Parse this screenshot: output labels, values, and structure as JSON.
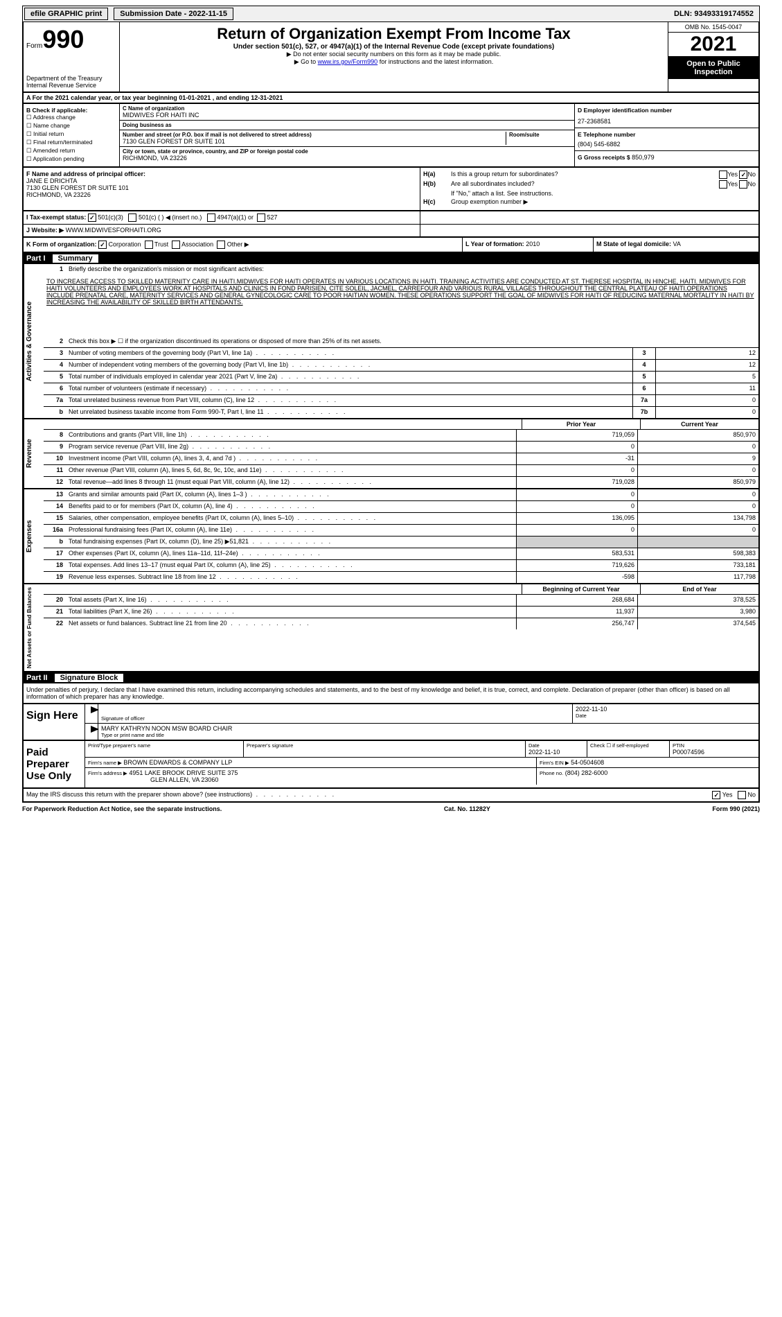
{
  "top": {
    "efile": "efile GRAPHIC print",
    "submission": "Submission Date - 2022-11-15",
    "dln": "DLN: 93493319174552"
  },
  "header": {
    "form_prefix": "Form",
    "form_num": "990",
    "dept": "Department of the Treasury Internal Revenue Service",
    "title": "Return of Organization Exempt From Income Tax",
    "sub": "Under section 501(c), 527, or 4947(a)(1) of the Internal Revenue Code (except private foundations)",
    "line1": "▶ Do not enter social security numbers on this form as it may be made public.",
    "line2_pre": "▶ Go to ",
    "line2_link": "www.irs.gov/Form990",
    "line2_post": " for instructions and the latest information.",
    "omb": "OMB No. 1545-0047",
    "year": "2021",
    "open": "Open to Public Inspection"
  },
  "a": "A For the 2021 calendar year, or tax year beginning 01-01-2021   , and ending 12-31-2021",
  "b": {
    "label": "B Check if applicable:",
    "opts": [
      "Address change",
      "Name change",
      "Initial return",
      "Final return/terminated",
      "Amended return",
      "Application pending"
    ]
  },
  "c": {
    "name_label": "C Name of organization",
    "name": "MIDWIVES FOR HAITI INC",
    "dba_label": "Doing business as",
    "dba": "",
    "street_label": "Number and street (or P.O. box if mail is not delivered to street address)",
    "street": "7130 GLEN FOREST DR SUITE 101",
    "room_label": "Room/suite",
    "room": "",
    "city_label": "City or town, state or province, country, and ZIP or foreign postal code",
    "city": "RICHMOND, VA  23226"
  },
  "d": {
    "label": "D Employer identification number",
    "val": "27-2368581"
  },
  "e": {
    "label": "E Telephone number",
    "val": "(804) 545-6882"
  },
  "g": {
    "label": "G Gross receipts $",
    "val": "850,979"
  },
  "f": {
    "label": "F  Name and address of principal officer:",
    "line1": "JANE E DRICHTA",
    "line2": "7130 GLEN FOREST DR SUITE 101",
    "line3": "RICHMOND, VA  23226"
  },
  "h": {
    "a_label": "H(a)",
    "a_text": "Is this a group return for subordinates?",
    "a_yes": "Yes",
    "a_no": "No",
    "b_label": "H(b)",
    "b_text": "Are all subordinates included?",
    "b_note": "If \"No,\" attach a list. See instructions.",
    "c_label": "H(c)",
    "c_text": "Group exemption number ▶"
  },
  "i": {
    "label": "I   Tax-exempt status:",
    "o1": "501(c)(3)",
    "o2": "501(c) (  ) ◀ (insert no.)",
    "o3": "4947(a)(1) or",
    "o4": "527"
  },
  "j": {
    "label": "J   Website: ▶",
    "val": "WWW.MIDWIVESFORHAITI.ORG"
  },
  "k": {
    "label": "K Form of organization:",
    "o1": "Corporation",
    "o2": "Trust",
    "o3": "Association",
    "o4": "Other ▶"
  },
  "l": {
    "label": "L Year of formation:",
    "val": "2010"
  },
  "m": {
    "label": "M State of legal domicile:",
    "val": "VA"
  },
  "part1": {
    "hdr": "Part I",
    "title": "Summary",
    "sections": {
      "gov": "Activities & Governance",
      "rev": "Revenue",
      "exp": "Expenses",
      "net": "Net Assets or Fund Balances"
    },
    "line1_label": "1",
    "line1_desc": "Briefly describe the organization's mission or most significant activities:",
    "mission": "TO INCREASE ACCESS TO SKILLED MATERNITY CARE IN HAITI.MIDWIVES FOR HAITI OPERATES IN VARIOUS LOCATIONS IN HAITI. TRAINING ACTIVITIES ARE CONDUCTED AT ST. THERESE HOSPITAL IN HINCHE, HAITI. MIDWIVES FOR HAITI VOLUNTEERS AND EMPLOYEES WORK AT HOSPITALS AND CLINICS IN FOND PARISIEN, CITE SOLEIL, JACMEL, CARREFOUR AND VARIOUS RURAL VILLAGES THROUGHOUT THE CENTRAL PLATEAU OF HAITI.OPERATIONS INCLUDE PRENATAL CARE, MATERNITY SERVICES AND GENERAL GYNECOLOGIC CARE TO POOR HAITIAN WOMEN. THESE OPERATIONS SUPPORT THE GOAL OF MIDWIVES FOR HAITI OF REDUCING MATERNAL MORTALITY IN HAITI BY INCREASING THE AVAILABILITY OF SKILLED BIRTH ATTENDANTS.",
    "line2": "Check this box ▶ ☐ if the organization discontinued its operations or disposed of more than 25% of its net assets.",
    "rows_single": [
      {
        "n": "3",
        "d": "Number of voting members of the governing body (Part VI, line 1a)",
        "box": "3",
        "v": "12"
      },
      {
        "n": "4",
        "d": "Number of independent voting members of the governing body (Part VI, line 1b)",
        "box": "4",
        "v": "12"
      },
      {
        "n": "5",
        "d": "Total number of individuals employed in calendar year 2021 (Part V, line 2a)",
        "box": "5",
        "v": "5"
      },
      {
        "n": "6",
        "d": "Total number of volunteers (estimate if necessary)",
        "box": "6",
        "v": "11"
      },
      {
        "n": "7a",
        "d": "Total unrelated business revenue from Part VIII, column (C), line 12",
        "box": "7a",
        "v": "0"
      },
      {
        "n": "b",
        "d": "Net unrelated business taxable income from Form 990-T, Part I, line 11",
        "box": "7b",
        "v": "0"
      }
    ],
    "col_hdr": {
      "prior": "Prior Year",
      "current": "Current Year"
    },
    "rows_rev": [
      {
        "n": "8",
        "d": "Contributions and grants (Part VIII, line 1h)",
        "p": "719,059",
        "c": "850,970"
      },
      {
        "n": "9",
        "d": "Program service revenue (Part VIII, line 2g)",
        "p": "0",
        "c": "0"
      },
      {
        "n": "10",
        "d": "Investment income (Part VIII, column (A), lines 3, 4, and 7d )",
        "p": "-31",
        "c": "9"
      },
      {
        "n": "11",
        "d": "Other revenue (Part VIII, column (A), lines 5, 6d, 8c, 9c, 10c, and 11e)",
        "p": "0",
        "c": "0"
      },
      {
        "n": "12",
        "d": "Total revenue—add lines 8 through 11 (must equal Part VIII, column (A), line 12)",
        "p": "719,028",
        "c": "850,979"
      }
    ],
    "rows_exp": [
      {
        "n": "13",
        "d": "Grants and similar amounts paid (Part IX, column (A), lines 1–3 )",
        "p": "0",
        "c": "0"
      },
      {
        "n": "14",
        "d": "Benefits paid to or for members (Part IX, column (A), line 4)",
        "p": "0",
        "c": "0"
      },
      {
        "n": "15",
        "d": "Salaries, other compensation, employee benefits (Part IX, column (A), lines 5–10)",
        "p": "136,095",
        "c": "134,798"
      },
      {
        "n": "16a",
        "d": "Professional fundraising fees (Part IX, column (A), line 11e)",
        "p": "0",
        "c": "0"
      },
      {
        "n": "b",
        "d": "Total fundraising expenses (Part IX, column (D), line 25) ▶51,821",
        "p": "",
        "c": "",
        "shade": true
      },
      {
        "n": "17",
        "d": "Other expenses (Part IX, column (A), lines 11a–11d, 11f–24e)",
        "p": "583,531",
        "c": "598,383"
      },
      {
        "n": "18",
        "d": "Total expenses. Add lines 13–17 (must equal Part IX, column (A), line 25)",
        "p": "719,626",
        "c": "733,181"
      },
      {
        "n": "19",
        "d": "Revenue less expenses. Subtract line 18 from line 12",
        "p": "-598",
        "c": "117,798"
      }
    ],
    "net_hdr": {
      "begin": "Beginning of Current Year",
      "end": "End of Year"
    },
    "rows_net": [
      {
        "n": "20",
        "d": "Total assets (Part X, line 16)",
        "p": "268,684",
        "c": "378,525"
      },
      {
        "n": "21",
        "d": "Total liabilities (Part X, line 26)",
        "p": "11,937",
        "c": "3,980"
      },
      {
        "n": "22",
        "d": "Net assets or fund balances. Subtract line 21 from line 20",
        "p": "256,747",
        "c": "374,545"
      }
    ]
  },
  "part2": {
    "hdr": "Part II",
    "title": "Signature Block",
    "decl": "Under penalties of perjury, I declare that I have examined this return, including accompanying schedules and statements, and to the best of my knowledge and belief, it is true, correct, and complete. Declaration of preparer (other than officer) is based on all information of which preparer has any knowledge.",
    "sign_here": "Sign Here",
    "sig_officer": "Signature of officer",
    "date_label": "Date",
    "date_val": "2022-11-10",
    "name": "MARY KATHRYN NOON MSW BOARD CHAIR",
    "name_label": "Type or print name and title",
    "paid": "Paid Preparer Use Only",
    "prep_name_label": "Print/Type preparer's name",
    "prep_sig_label": "Preparer's signature",
    "prep_date_label": "Date",
    "prep_date": "2022-11-10",
    "self_emp": "Check ☐ if self-employed",
    "ptin_label": "PTIN",
    "ptin": "P00074596",
    "firm_name_label": "Firm's name    ▶",
    "firm_name": "BROWN EDWARDS & COMPANY LLP",
    "firm_ein_label": "Firm's EIN ▶",
    "firm_ein": "54-0504608",
    "firm_addr_label": "Firm's address ▶",
    "firm_addr": "4951 LAKE BROOK DRIVE SUITE 375",
    "firm_city": "GLEN ALLEN, VA  23060",
    "phone_label": "Phone no.",
    "phone": "(804) 282-6000",
    "discuss": "May the IRS discuss this return with the preparer shown above? (see instructions)"
  },
  "footer": {
    "left": "For Paperwork Reduction Act Notice, see the separate instructions.",
    "mid": "Cat. No. 11282Y",
    "right": "Form 990 (2021)"
  }
}
